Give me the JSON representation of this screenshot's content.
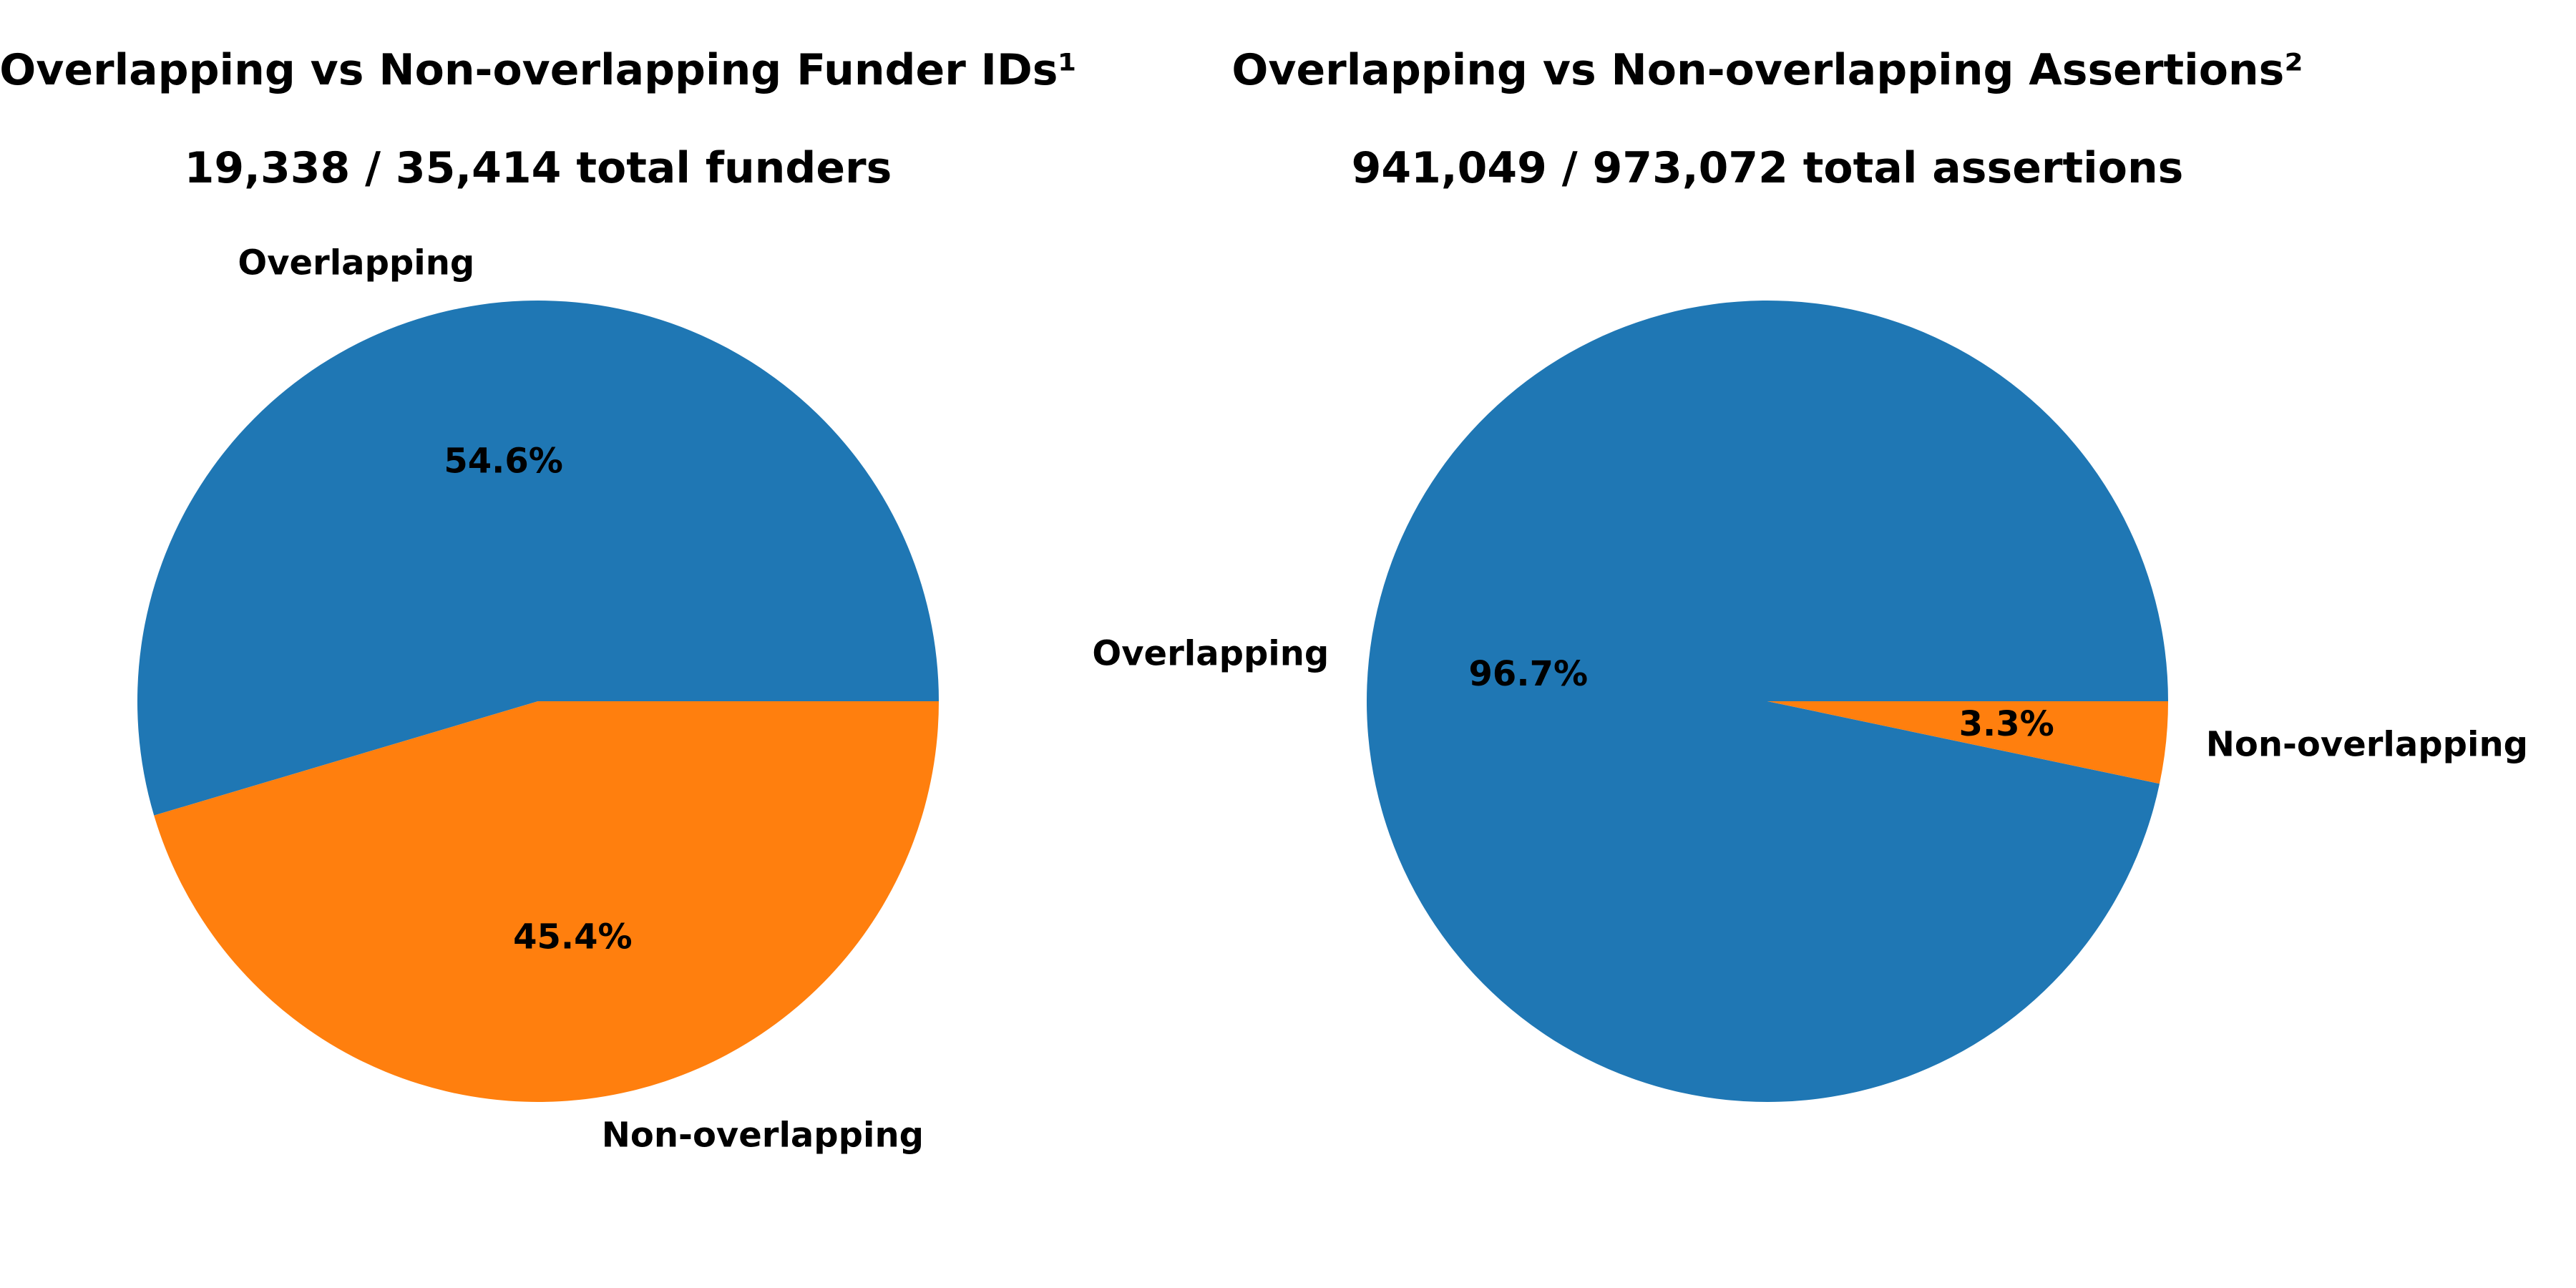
{
  "chart_data": [
    {
      "type": "pie",
      "title": "Overlapping vs Non-overlapping Funder IDs¹",
      "subtitle": "19,338 / 35,414 total funders",
      "categories": [
        "Overlapping",
        "Non-overlapping"
      ],
      "values": [
        54.6,
        45.4
      ],
      "value_labels": [
        "54.6%",
        "45.4%"
      ],
      "colors": [
        "#1f77b4",
        "#ff7f0e"
      ],
      "start_angle_deg": 0,
      "direction": "counterclockwise",
      "legend": "none"
    },
    {
      "type": "pie",
      "title": "Overlapping vs Non-overlapping Assertions²",
      "subtitle": "941,049 / 973,072 total assertions",
      "categories": [
        "Overlapping",
        "Non-overlapping"
      ],
      "values": [
        96.7,
        3.3
      ],
      "value_labels": [
        "96.7%",
        "3.3%"
      ],
      "colors": [
        "#1f77b4",
        "#ff7f0e"
      ],
      "start_angle_deg": 0,
      "direction": "counterclockwise",
      "legend": "none"
    }
  ]
}
